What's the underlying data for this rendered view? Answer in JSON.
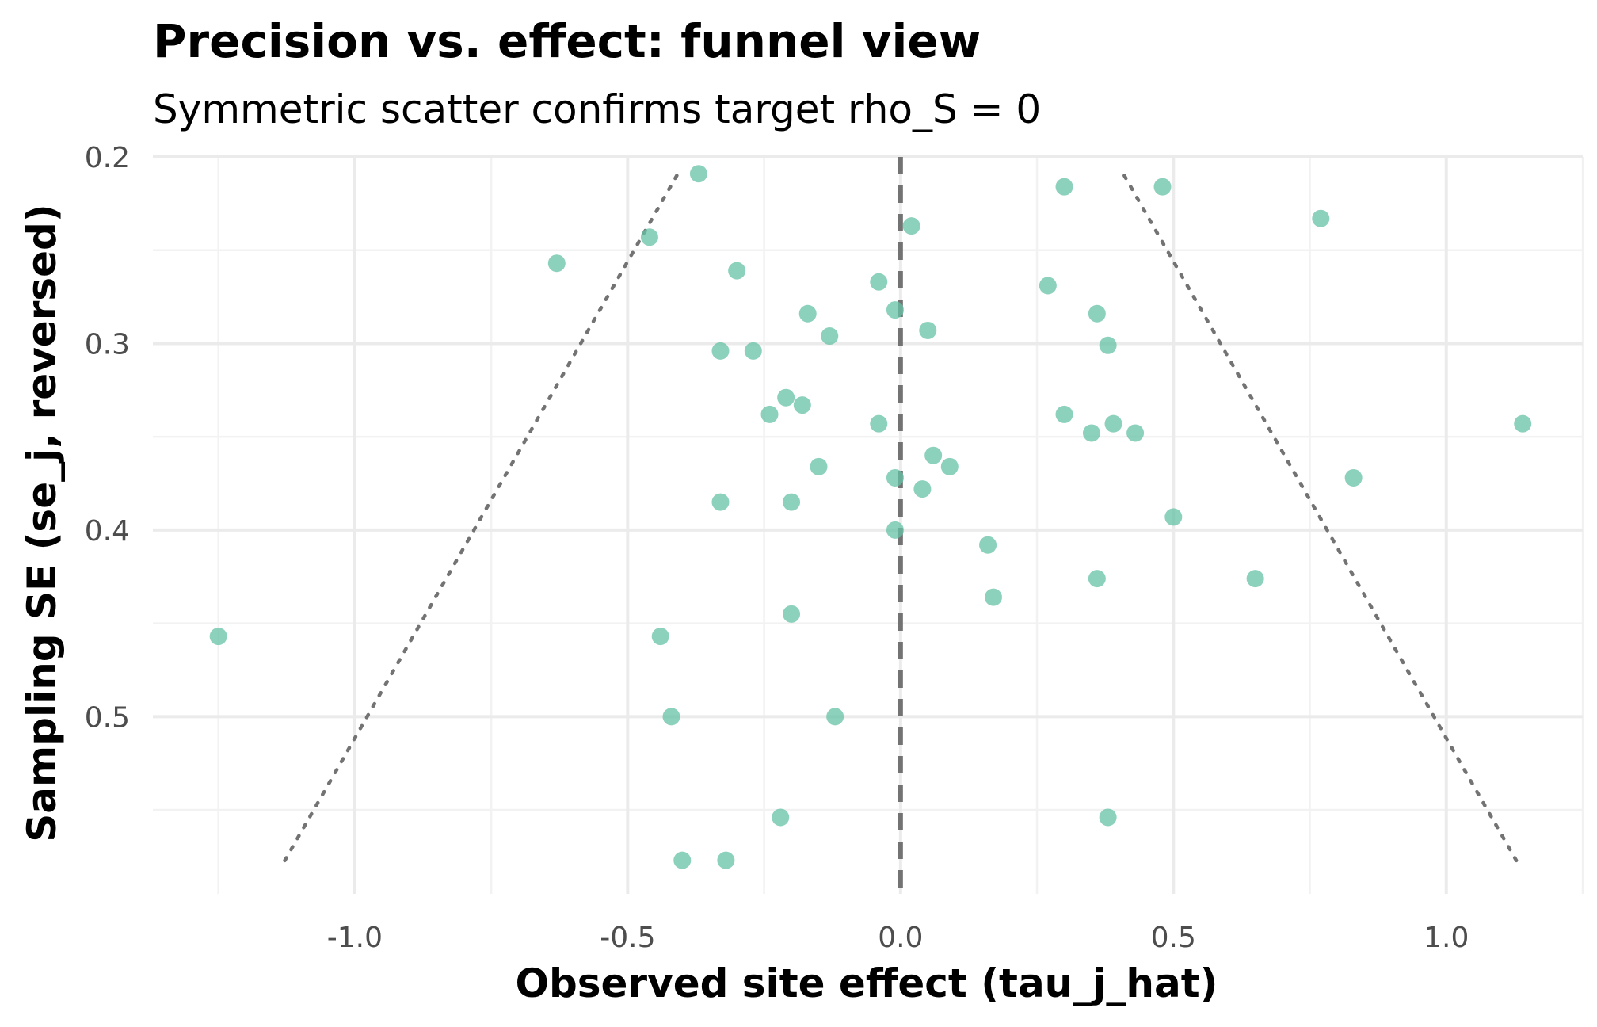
{
  "chart_data": {
    "type": "scatter",
    "title": "Precision vs. effect: funnel view",
    "subtitle": "Symmetric scatter confirms target rho_S = 0",
    "xlabel": "Observed site effect (tau_j_hat)",
    "ylabel": "Sampling SE (se_j, reversed)",
    "xlim": [
      -1.37,
      1.25
    ],
    "ylim": [
      0.2,
      0.595
    ],
    "y_reversed": true,
    "x_ticks": [
      -1.0,
      -0.5,
      0.0,
      0.5,
      1.0
    ],
    "x_tick_labels": [
      "-1.0",
      "-0.5",
      "0.0",
      "0.5",
      "1.0"
    ],
    "y_ticks": [
      0.2,
      0.3,
      0.4,
      0.5
    ],
    "y_tick_labels": [
      "0.2",
      "0.3",
      "0.4",
      "0.5"
    ],
    "grid": true,
    "point_color": "#66c2a5",
    "reference_line": {
      "x": 0.0,
      "style": "dashed",
      "color": "#737373"
    },
    "funnel": {
      "style": "dotted",
      "color": "#737373",
      "left": [
        [
          -0.41,
          0.21
        ],
        [
          -1.13,
          0.578
        ]
      ],
      "right": [
        [
          0.41,
          0.21
        ],
        [
          1.13,
          0.578
        ]
      ]
    },
    "points": [
      [
        -0.37,
        0.209
      ],
      [
        0.3,
        0.216
      ],
      [
        0.48,
        0.216
      ],
      [
        0.77,
        0.233
      ],
      [
        0.02,
        0.237
      ],
      [
        -0.46,
        0.243
      ],
      [
        -0.63,
        0.257
      ],
      [
        -0.3,
        0.261
      ],
      [
        -0.04,
        0.267
      ],
      [
        0.27,
        0.269
      ],
      [
        -0.01,
        0.282
      ],
      [
        -0.17,
        0.284
      ],
      [
        0.36,
        0.284
      ],
      [
        0.05,
        0.293
      ],
      [
        -0.13,
        0.296
      ],
      [
        0.38,
        0.301
      ],
      [
        -0.33,
        0.304
      ],
      [
        -0.27,
        0.304
      ],
      [
        -0.21,
        0.329
      ],
      [
        -0.18,
        0.333
      ],
      [
        -0.24,
        0.338
      ],
      [
        0.3,
        0.338
      ],
      [
        -0.04,
        0.343
      ],
      [
        0.39,
        0.343
      ],
      [
        1.14,
        0.343
      ],
      [
        0.35,
        0.348
      ],
      [
        0.43,
        0.348
      ],
      [
        0.06,
        0.36
      ],
      [
        -0.15,
        0.366
      ],
      [
        0.09,
        0.366
      ],
      [
        -0.01,
        0.372
      ],
      [
        0.83,
        0.372
      ],
      [
        0.04,
        0.378
      ],
      [
        -0.33,
        0.385
      ],
      [
        -0.2,
        0.385
      ],
      [
        0.5,
        0.393
      ],
      [
        -0.01,
        0.4
      ],
      [
        0.16,
        0.408
      ],
      [
        0.36,
        0.426
      ],
      [
        0.65,
        0.426
      ],
      [
        0.17,
        0.436
      ],
      [
        -0.2,
        0.445
      ],
      [
        -1.25,
        0.457
      ],
      [
        -0.44,
        0.457
      ],
      [
        -0.42,
        0.5
      ],
      [
        -0.12,
        0.5
      ],
      [
        -0.22,
        0.554
      ],
      [
        0.38,
        0.554
      ],
      [
        -0.4,
        0.577
      ],
      [
        -0.32,
        0.577
      ]
    ]
  }
}
